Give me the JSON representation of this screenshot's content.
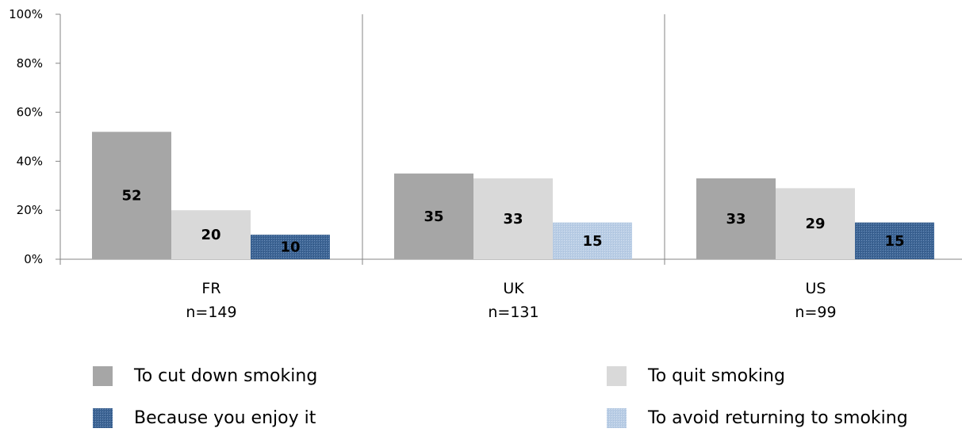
{
  "chart_data": {
    "type": "bar",
    "categories": [
      "FR",
      "UK",
      "US"
    ],
    "category_sublabels": [
      "n=149",
      "n=131",
      "n=99"
    ],
    "ylim": [
      0,
      100
    ],
    "y_ticks": [
      0,
      20,
      40,
      60,
      80,
      100
    ],
    "y_tick_labels": [
      "0%",
      "20%",
      "40%",
      "60%",
      "80%",
      "100%"
    ],
    "grid": false,
    "legend_position": "bottom",
    "series": [
      {
        "name": "To cut down smoking",
        "color": "#a6a6a6",
        "values": [
          52,
          35,
          33
        ]
      },
      {
        "name": "To quit smoking",
        "color": "#d9d9d9",
        "values": [
          20,
          33,
          29
        ]
      },
      {
        "name": "To avoid returning to smoking",
        "color": "#b9cde5",
        "values": [
          null,
          15,
          null
        ]
      },
      {
        "name": "Because you enjoy it",
        "color": "#3e6696",
        "values": [
          10,
          null,
          15
        ]
      }
    ],
    "legend_order": [
      0,
      1,
      3,
      2
    ]
  }
}
